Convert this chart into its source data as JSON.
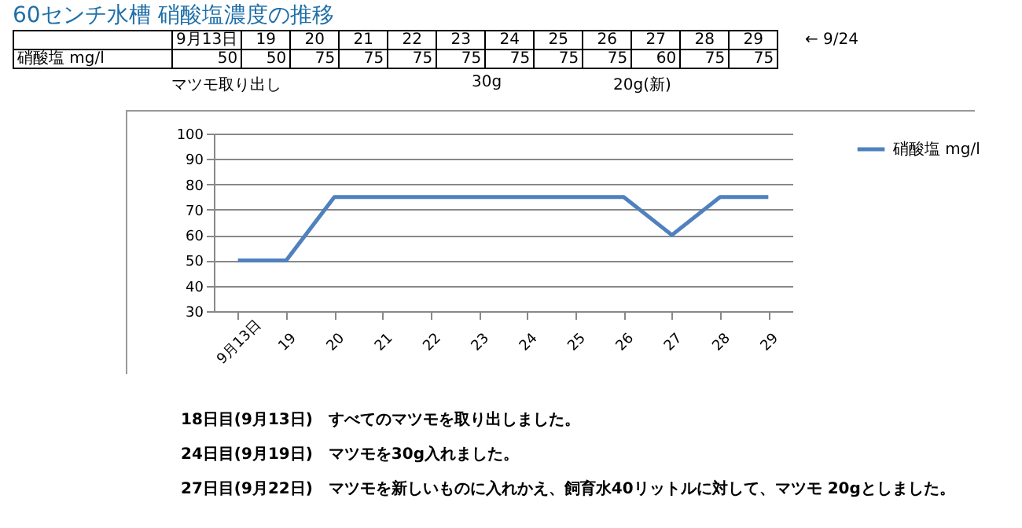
{
  "chart_data": {
    "type": "line",
    "title": "60センチ水槽 硝酸塩濃度の推移",
    "categories": [
      "9月13日",
      "19",
      "20",
      "21",
      "22",
      "23",
      "24",
      "25",
      "26",
      "27",
      "28",
      "29"
    ],
    "series": [
      {
        "name": "硝酸塩 mg/l",
        "color": "#4f81bd",
        "values": [
          50,
          50,
          75,
          75,
          75,
          75,
          75,
          75,
          75,
          60,
          75,
          75
        ]
      }
    ],
    "ylim": [
      30,
      100
    ],
    "yticks": [
      30,
      40,
      50,
      60,
      70,
      80,
      90,
      100
    ],
    "grid": "y",
    "legend": "right",
    "data_labels": true,
    "marker": "none",
    "line_style": "solid",
    "annotations": [
      "← 9/24",
      "マツモ取り出し",
      "30g",
      "20g(新)",
      "18日目(9月13日)　すべてのマツモを取り出しました。",
      "24日目(9月19日)　マツモを30g入れました。",
      "27日目(9月22日)　マツモを新しいものに入れかえ、飼育水40リットルに対して、マツモ 20gとしました。"
    ]
  }
}
